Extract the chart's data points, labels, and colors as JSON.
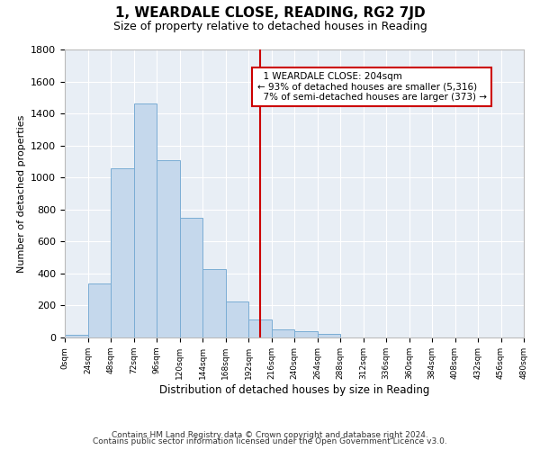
{
  "title": "1, WEARDALE CLOSE, READING, RG2 7JD",
  "subtitle": "Size of property relative to detached houses in Reading",
  "xlabel": "Distribution of detached houses by size in Reading",
  "ylabel": "Number of detached properties",
  "bar_color": "#c5d8ec",
  "bar_edge_color": "#7aadd4",
  "background_color": "#e8eef5",
  "grid_color": "#ffffff",
  "bin_labels": [
    "0sqm",
    "24sqm",
    "48sqm",
    "72sqm",
    "96sqm",
    "120sqm",
    "144sqm",
    "168sqm",
    "192sqm",
    "216sqm",
    "240sqm",
    "264sqm",
    "288sqm",
    "312sqm",
    "336sqm",
    "360sqm",
    "384sqm",
    "408sqm",
    "432sqm",
    "456sqm",
    "480sqm"
  ],
  "bar_heights": [
    15,
    340,
    1060,
    1460,
    1110,
    750,
    430,
    225,
    110,
    50,
    40,
    20,
    0,
    0,
    0,
    0,
    0,
    0,
    0,
    0
  ],
  "property_size": 204,
  "vline_color": "#cc0000",
  "annotation_text": "  1 WEARDALE CLOSE: 204sqm\n← 93% of detached houses are smaller (5,316)\n  7% of semi-detached houses are larger (373) →",
  "annotation_box_color": "#ffffff",
  "annotation_box_edge_color": "#cc0000",
  "footer_line1": "Contains HM Land Registry data © Crown copyright and database right 2024.",
  "footer_line2": "Contains public sector information licensed under the Open Government Licence v3.0.",
  "ylim": [
    0,
    1800
  ],
  "yticks": [
    0,
    200,
    400,
    600,
    800,
    1000,
    1200,
    1400,
    1600,
    1800
  ],
  "fig_width": 6.0,
  "fig_height": 5.0,
  "dpi": 100
}
